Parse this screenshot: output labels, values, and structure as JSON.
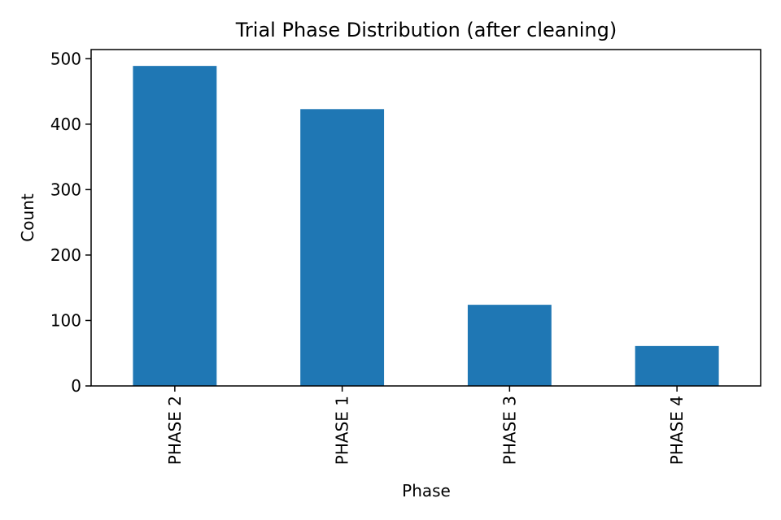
{
  "chart_data": {
    "type": "bar",
    "title": "Trial Phase Distribution (after cleaning)",
    "xlabel": "Phase",
    "ylabel": "Count",
    "categories": [
      "PHASE 2",
      "PHASE 1",
      "PHASE 3",
      "PHASE 4"
    ],
    "values": [
      489,
      423,
      124,
      61
    ],
    "ylim": [
      0,
      514
    ],
    "yticks": [
      0,
      100,
      200,
      300,
      400,
      500
    ],
    "bar_color": "#1f77b4",
    "grid": false
  }
}
